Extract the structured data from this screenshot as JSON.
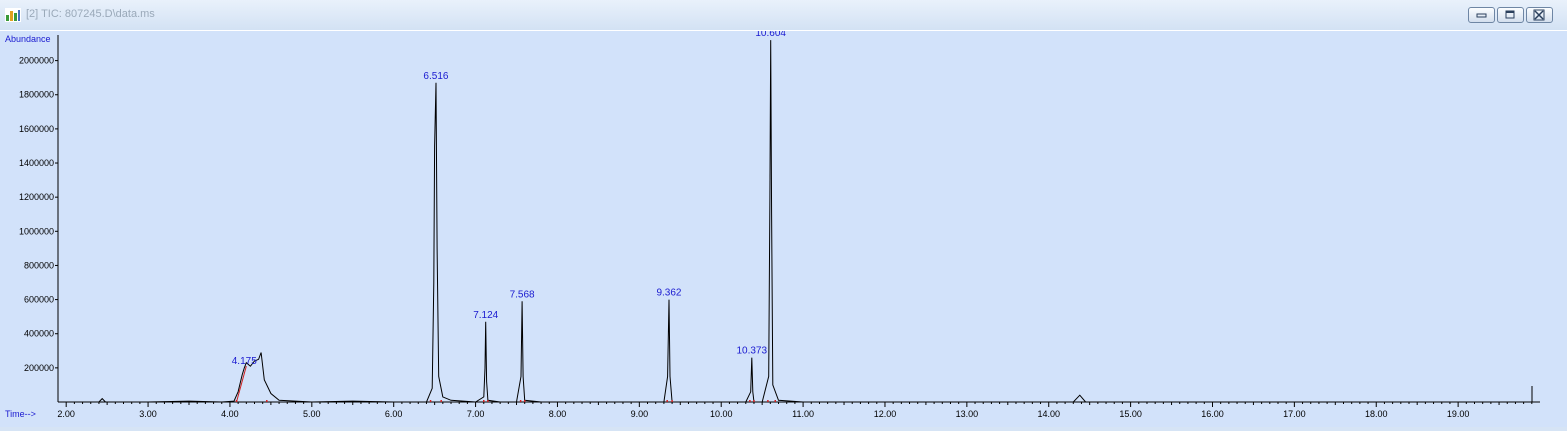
{
  "window": {
    "title": "[2] TIC: 807245.D\\data.ms",
    "icon": "chromatogram-app-icon",
    "controls": [
      "minimize-icon",
      "restore-icon",
      "close-icon"
    ]
  },
  "colors": {
    "trace": "#000000",
    "peak_label": "#1a1ad0",
    "axis_label": "#1a1ad0",
    "baseline_marks": "#d02020",
    "background": "#d2e2fa"
  },
  "chart_data": {
    "type": "line",
    "ylabel": "Abundance",
    "xlabel": "Time-->",
    "xlim": [
      1.9,
      20.0
    ],
    "ylim": [
      0,
      2150000
    ],
    "x_ticks": [
      "2.00",
      "3.00",
      "4.00",
      "5.00",
      "6.00",
      "7.00",
      "8.00",
      "9.00",
      "10.00",
      "11.00",
      "12.00",
      "13.00",
      "14.00",
      "15.00",
      "16.00",
      "17.00",
      "18.00",
      "19.00"
    ],
    "y_ticks": [
      "200000",
      "400000",
      "600000",
      "800000",
      "1000000",
      "1200000",
      "1400000",
      "1600000",
      "1800000",
      "2000000"
    ],
    "series": [
      {
        "name": "",
        "x": [
          1.9,
          2.4,
          2.44,
          2.48,
          2.6,
          3.0,
          3.5,
          3.9,
          4.05,
          4.1,
          4.15,
          4.175,
          4.2,
          4.25,
          4.3,
          4.35,
          4.38,
          4.42,
          4.5,
          4.6,
          5.0,
          5.5,
          6.0,
          6.4,
          6.47,
          6.49,
          6.5,
          6.516,
          6.53,
          6.55,
          6.6,
          6.7,
          7.0,
          7.1,
          7.115,
          7.124,
          7.135,
          7.15,
          7.3,
          7.5,
          7.555,
          7.568,
          7.58,
          7.6,
          7.8,
          8.5,
          9.3,
          9.345,
          9.362,
          9.375,
          9.4,
          9.6,
          10.3,
          10.36,
          10.373,
          10.386,
          10.4,
          10.5,
          10.58,
          10.595,
          10.604,
          10.615,
          10.63,
          10.7,
          11.0,
          12.0,
          13.0,
          14.0,
          14.3,
          14.38,
          14.45,
          15.0,
          17.0,
          20.0
        ],
        "y": [
          0,
          0,
          20000,
          0,
          0,
          0,
          5000,
          0,
          5000,
          60000,
          160000,
          200000,
          230000,
          210000,
          240000,
          250000,
          290000,
          130000,
          50000,
          10000,
          0,
          5000,
          0,
          0,
          80000,
          700000,
          1500000,
          1870000,
          900000,
          150000,
          30000,
          10000,
          0,
          30000,
          200000,
          470000,
          120000,
          10000,
          0,
          0,
          150000,
          590000,
          150000,
          10000,
          0,
          0,
          0,
          150000,
          600000,
          150000,
          0,
          0,
          0,
          60000,
          260000,
          60000,
          0,
          0,
          150000,
          1200000,
          2120000,
          1100000,
          100000,
          10000,
          0,
          0,
          0,
          0,
          0,
          40000,
          0,
          0,
          0,
          0
        ]
      }
    ],
    "peak_labels": [
      {
        "x": 4.175,
        "y": 200000,
        "label": "4.175"
      },
      {
        "x": 6.516,
        "y": 1870000,
        "label": "6.516"
      },
      {
        "x": 7.124,
        "y": 470000,
        "label": "7.124"
      },
      {
        "x": 7.568,
        "y": 590000,
        "label": "7.568"
      },
      {
        "x": 9.362,
        "y": 600000,
        "label": "9.362"
      },
      {
        "x": 10.373,
        "y": 260000,
        "label": "10.373"
      },
      {
        "x": 10.604,
        "y": 2120000,
        "label": "10.604"
      }
    ],
    "grid": false
  }
}
